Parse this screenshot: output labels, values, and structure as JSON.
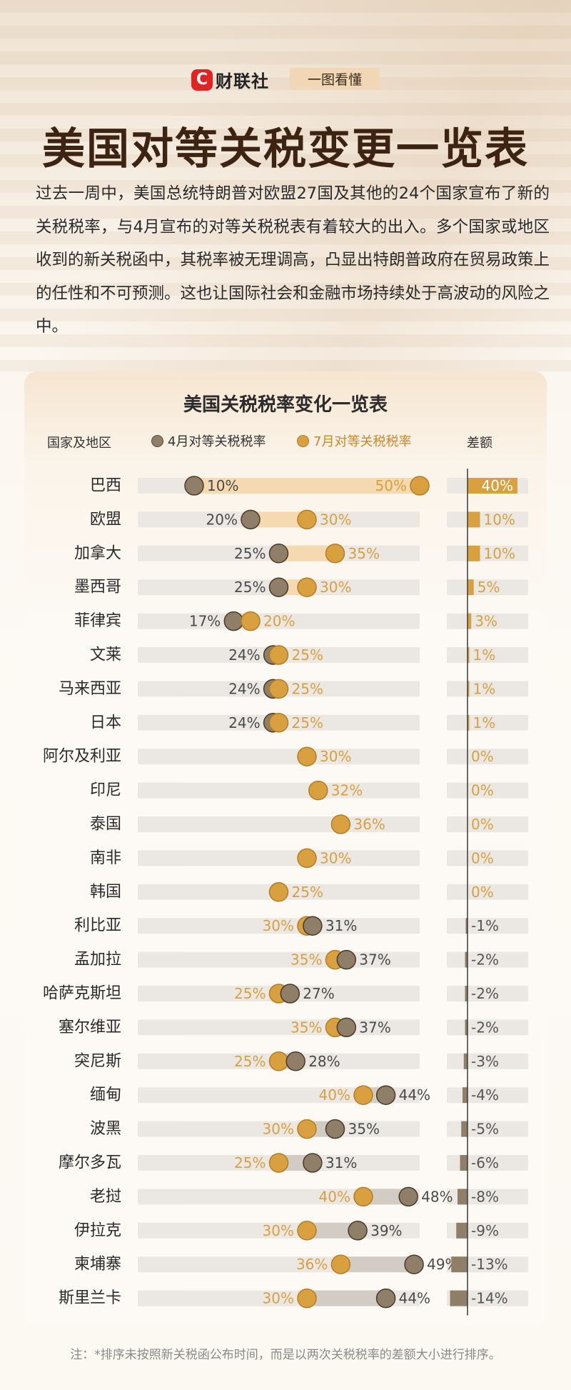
{
  "header": {
    "logo_mark": "C",
    "logo_text": "财联社",
    "tag": "一图看懂"
  },
  "title": "美国对等关税变更一览表",
  "intro": "过去一周中，美国总统特朗普对欧盟27国及其他的24个国家宣布了新的关税税率，与4月宣布的对等关税税表有着较大的出入。多个国家或地区收到的新关税函中，其税率被无理调高，凸显出特朗普政府在贸易政策上的任性和不可预测。这也让国际社会和金融市场持续处于高波动的风险之中。",
  "colors": {
    "april": "#8f7e68",
    "july": "#d9a03f",
    "increase_band": "#f5d9b0",
    "decrease_band": "#d2ccc4",
    "track": "#ebe8e4",
    "axis": "#3a3a3a",
    "diff_positive": "#d9a03f",
    "diff_negative": "#8f7e68"
  },
  "chart_data": {
    "type": "dumbbell",
    "title": "美国关税税率变化一览表",
    "column_headers": {
      "country": "国家及地区",
      "diff": "差额"
    },
    "legend": [
      {
        "name": "4月对等关税税率",
        "color": "#8f7e68"
      },
      {
        "name": "7月对等关税税率",
        "color": "#d9a03f"
      }
    ],
    "xlim": [
      0,
      50
    ],
    "rows": [
      {
        "country": "巴西",
        "april": 10,
        "july": 50,
        "diff": 40,
        "diff_label": "40%"
      },
      {
        "country": "欧盟",
        "april": 20,
        "july": 30,
        "diff": 10,
        "diff_label": "10%"
      },
      {
        "country": "加拿大",
        "april": 25,
        "july": 35,
        "diff": 10,
        "diff_label": "10%"
      },
      {
        "country": "墨西哥",
        "april": 25,
        "july": 30,
        "diff": 5,
        "diff_label": "5%"
      },
      {
        "country": "菲律宾",
        "april": 17,
        "july": 20,
        "diff": 3,
        "diff_label": "3%"
      },
      {
        "country": "文莱",
        "april": 24,
        "july": 25,
        "diff": 1,
        "diff_label": "1%"
      },
      {
        "country": "马来西亚",
        "april": 24,
        "july": 25,
        "diff": 1,
        "diff_label": "1%"
      },
      {
        "country": "日本",
        "april": 24,
        "july": 25,
        "diff": 1,
        "diff_label": "1%"
      },
      {
        "country": "阿尔及利亚",
        "april": null,
        "july": 30,
        "diff": 0,
        "diff_label": "0%"
      },
      {
        "country": "印尼",
        "april": null,
        "july": 32,
        "diff": 0,
        "diff_label": "0%"
      },
      {
        "country": "泰国",
        "april": null,
        "july": 36,
        "diff": 0,
        "diff_label": "0%"
      },
      {
        "country": "南非",
        "april": null,
        "july": 30,
        "diff": 0,
        "diff_label": "0%"
      },
      {
        "country": "韩国",
        "april": null,
        "july": 25,
        "diff": 0,
        "diff_label": "0%"
      },
      {
        "country": "利比亚",
        "april": 31,
        "july": 30,
        "diff": -1,
        "diff_label": "-1%"
      },
      {
        "country": "孟加拉",
        "april": 37,
        "july": 35,
        "diff": -2,
        "diff_label": "-2%"
      },
      {
        "country": "哈萨克斯坦",
        "april": 27,
        "july": 25,
        "diff": -2,
        "diff_label": "-2%"
      },
      {
        "country": "塞尔维亚",
        "april": 37,
        "july": 35,
        "diff": -2,
        "diff_label": "-2%"
      },
      {
        "country": "突尼斯",
        "april": 28,
        "july": 25,
        "diff": -3,
        "diff_label": "-3%"
      },
      {
        "country": "缅甸",
        "april": 44,
        "july": 40,
        "diff": -4,
        "diff_label": "-4%"
      },
      {
        "country": "波黑",
        "april": 35,
        "july": 30,
        "diff": -5,
        "diff_label": "-5%"
      },
      {
        "country": "摩尔多瓦",
        "april": 31,
        "july": 25,
        "diff": -6,
        "diff_label": "-6%"
      },
      {
        "country": "老挝",
        "april": 48,
        "july": 40,
        "diff": -8,
        "diff_label": "-8%"
      },
      {
        "country": "伊拉克",
        "april": 39,
        "july": 30,
        "diff": -9,
        "diff_label": "-9%"
      },
      {
        "country": "柬埔寨",
        "april": 49,
        "july": 36,
        "diff": -13,
        "diff_label": "-13%"
      },
      {
        "country": "斯里兰卡",
        "april": 44,
        "july": 30,
        "diff": -14,
        "diff_label": "-14%"
      }
    ]
  },
  "footer": "注：*排序未按照新关税函公布时间，而是以两次关税税率的差额大小进行排序。"
}
